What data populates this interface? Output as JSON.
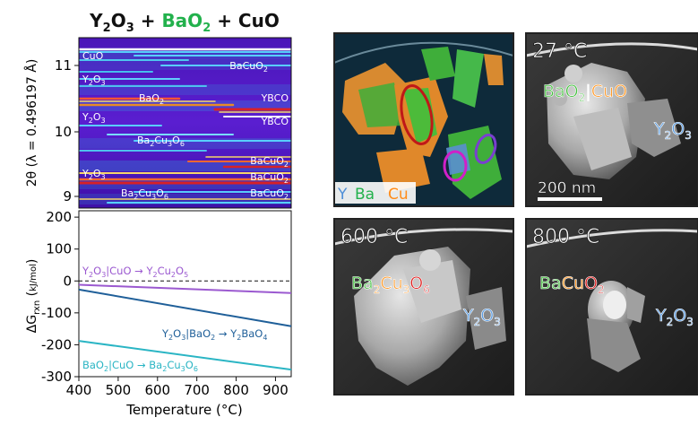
{
  "title": {
    "y2o3": "Y",
    "plus1": " + ",
    "bao2": "BaO",
    "plus2": " + ",
    "cuo": "CuO"
  },
  "colors": {
    "y": "#4f8fd8",
    "ba": "#22b14c",
    "cu": "#ff8c1a",
    "o": "#e02020",
    "ink": "#111111"
  },
  "xrd": {
    "ylabel": "2θ (λ = 0.496197 Å)",
    "yticks": [
      "11",
      "10",
      "9"
    ],
    "labels_left": [
      "CuO",
      "Y2O3",
      "BaO2",
      "Y2O3",
      "Ba2Cu3O6",
      "Y2O3",
      "Ba2Cu3O6"
    ],
    "labels_right": [
      "BaCuO2",
      "YBCO",
      "YBCO",
      "BaCuO2",
      "BaCuO2",
      "BaCuO2"
    ]
  },
  "chart_data": {
    "type": "line",
    "xlabel": "Temperature (°C)",
    "ylabel": "ΔG_rxn (kJ/mol)",
    "xlim": [
      400,
      940
    ],
    "ylim": [
      -300,
      220
    ],
    "xticks": [
      400,
      500,
      600,
      700,
      800,
      900
    ],
    "yticks": [
      200,
      100,
      0,
      -100,
      -200,
      -300
    ],
    "series": [
      {
        "name": "Y2O3|CuO → Y2Cu2O5",
        "color": "#9b59d0",
        "x": [
          400,
          940
        ],
        "y": [
          -12,
          -38
        ]
      },
      {
        "name": "Y2O3|BaO2 → Y2BaO4",
        "color": "#1f5f99",
        "x": [
          400,
          940
        ],
        "y": [
          -27,
          -142
        ]
      },
      {
        "name": "BaO2|CuO → Ba2Cu3O6",
        "color": "#2ab5c4",
        "x": [
          400,
          940
        ],
        "y": [
          -188,
          -278
        ]
      }
    ]
  },
  "series_labels": {
    "s1": [
      "Y",
      "2",
      "O",
      "3",
      "|CuO → Y",
      "2",
      "Cu",
      "2",
      "O",
      "5"
    ],
    "s2": [
      "Y",
      "2",
      "O",
      "3",
      "|BaO",
      "2",
      " → Y",
      "2",
      "BaO",
      "4"
    ],
    "s3": [
      "BaO",
      "2",
      "|CuO → Ba",
      "2",
      "Cu",
      "3",
      "O",
      "6"
    ]
  },
  "panels": {
    "map_legend": [
      "Y",
      "Ba",
      "Cu"
    ],
    "p27": {
      "temp": "27 °C",
      "scale": "200 nm",
      "phase1": "BaO",
      "phase2": "CuO",
      "phase3": "Y O"
    },
    "p600": {
      "temp": "600 °C",
      "phase": "Ba Cu O",
      "other": "Y O"
    },
    "p800": {
      "temp": "800 °C",
      "phase": "BaCuO",
      "other": "Y O"
    }
  }
}
